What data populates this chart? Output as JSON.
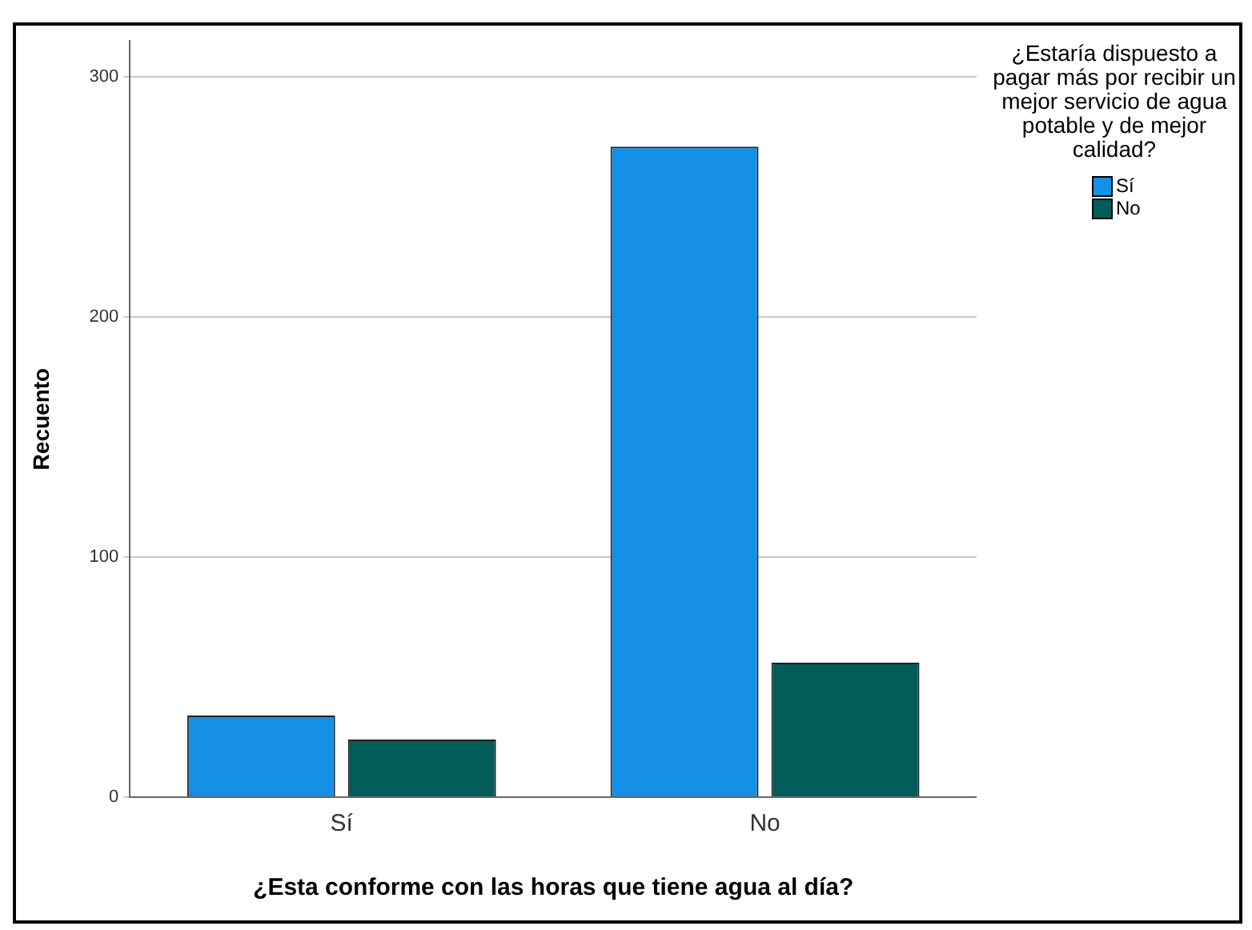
{
  "chart_data": {
    "type": "bar",
    "xlabel": "¿Esta conforme con las horas que tiene agua al día?",
    "ylabel": "Recuento",
    "legend_title": "¿Estaría dispuesto a pagar más por recibir un mejor servicio de agua potable y de mejor calidad?",
    "categories": [
      "Sí",
      "No"
    ],
    "series": [
      {
        "name": "Sí",
        "color": "#1490e6",
        "values": [
          34,
          271
        ]
      },
      {
        "name": "No",
        "color": "#025c5a",
        "values": [
          24,
          56
        ]
      }
    ],
    "ylim": [
      0,
      315
    ],
    "yticks": [
      0,
      100,
      200,
      300
    ],
    "grid": "y",
    "legend": "top right"
  }
}
